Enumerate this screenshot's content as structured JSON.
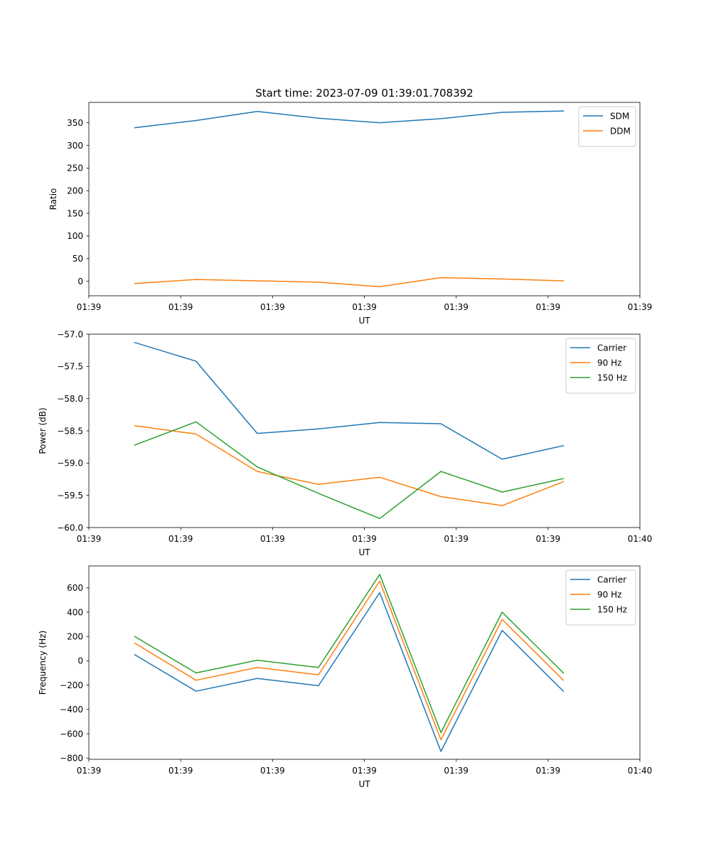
{
  "figure_title": "Start time: 2023-07-09 01:39:01.708392",
  "chart_data": [
    {
      "type": "line",
      "title": "Start time: 2023-07-09 01:39:01.708392",
      "xlabel": "UT",
      "ylabel": "Ratio",
      "x": [
        1,
        2,
        3,
        4,
        5,
        6,
        7,
        8
      ],
      "xlim": [
        0.25,
        9.25
      ],
      "x_ticks": [
        0.25,
        1.75,
        3.25,
        4.75,
        6.25,
        7.75,
        9.25
      ],
      "x_tick_labels": [
        "01:39",
        "01:39",
        "01:39",
        "01:39",
        "01:39",
        "01:39",
        "01:39"
      ],
      "ylim": [
        -32,
        395
      ],
      "y_ticks": [
        0,
        50,
        100,
        150,
        200,
        250,
        300,
        350
      ],
      "y_tick_labels": [
        "0",
        "50",
        "100",
        "150",
        "200",
        "250",
        "300",
        "350"
      ],
      "grid": false,
      "legend_position": "top-right",
      "series": [
        {
          "name": "SDM",
          "color": "#1f77b4",
          "values": [
            339,
            355,
            375,
            360,
            350,
            359,
            373,
            376
          ]
        },
        {
          "name": "DDM",
          "color": "#ff7f0e",
          "values": [
            -5,
            4,
            1,
            -2,
            -12,
            8,
            5,
            1
          ]
        }
      ]
    },
    {
      "type": "line",
      "title": "",
      "xlabel": "UT",
      "ylabel": "Power (dB)",
      "x": [
        1,
        2,
        3,
        4,
        5,
        6,
        7,
        8
      ],
      "xlim": [
        0.25,
        9.25
      ],
      "x_ticks": [
        0.25,
        1.75,
        3.25,
        4.75,
        6.25,
        7.75,
        9.25
      ],
      "x_tick_labels": [
        "01:39",
        "01:39",
        "01:39",
        "01:39",
        "01:39",
        "01:39",
        "01:40"
      ],
      "ylim": [
        -60.0,
        -57.0
      ],
      "y_ticks": [
        -57.0,
        -57.5,
        -58.0,
        -58.5,
        -59.0,
        -59.5,
        -60.0
      ],
      "y_tick_labels": [
        "−57.0",
        "−57.5",
        "−58.0",
        "−58.5",
        "−59.0",
        "−59.5",
        "−60.0"
      ],
      "grid": false,
      "legend_position": "top-right",
      "series": [
        {
          "name": "Carrier",
          "color": "#1f77b4",
          "values": [
            -57.13,
            -57.42,
            -58.54,
            -58.47,
            -58.37,
            -58.39,
            -58.94,
            -58.73
          ]
        },
        {
          "name": "90 Hz",
          "color": "#ff7f0e",
          "values": [
            -58.42,
            -58.55,
            -59.13,
            -59.33,
            -59.22,
            -59.52,
            -59.66,
            -59.29
          ]
        },
        {
          "name": "150 Hz",
          "color": "#2ca02c",
          "values": [
            -58.72,
            -58.36,
            -59.06,
            -59.47,
            -59.86,
            -59.13,
            -59.45,
            -59.24
          ]
        }
      ]
    },
    {
      "type": "line",
      "title": "",
      "xlabel": "UT",
      "ylabel": "Frequency (Hz)",
      "x": [
        1,
        2,
        3,
        4,
        5,
        6,
        7,
        8
      ],
      "xlim": [
        0.25,
        9.25
      ],
      "x_ticks": [
        0.25,
        1.75,
        3.25,
        4.75,
        6.25,
        7.75,
        9.25
      ],
      "x_tick_labels": [
        "01:39",
        "01:39",
        "01:39",
        "01:39",
        "01:39",
        "01:39",
        "01:40"
      ],
      "ylim": [
        -810,
        780
      ],
      "y_ticks": [
        600,
        400,
        200,
        0,
        -200,
        -400,
        -600,
        -800
      ],
      "y_tick_labels": [
        "600",
        "400",
        "200",
        "0",
        "−200",
        "−400",
        "−600",
        "−800"
      ],
      "grid": false,
      "legend_position": "top-right",
      "series": [
        {
          "name": "Carrier",
          "color": "#1f77b4",
          "values": [
            50,
            -250,
            -145,
            -205,
            560,
            -745,
            250,
            -250
          ]
        },
        {
          "name": "90 Hz",
          "color": "#ff7f0e",
          "values": [
            145,
            -160,
            -55,
            -115,
            655,
            -650,
            340,
            -160
          ]
        },
        {
          "name": "150 Hz",
          "color": "#2ca02c",
          "values": [
            200,
            -100,
            5,
            -55,
            710,
            -590,
            400,
            -100
          ]
        }
      ]
    }
  ]
}
